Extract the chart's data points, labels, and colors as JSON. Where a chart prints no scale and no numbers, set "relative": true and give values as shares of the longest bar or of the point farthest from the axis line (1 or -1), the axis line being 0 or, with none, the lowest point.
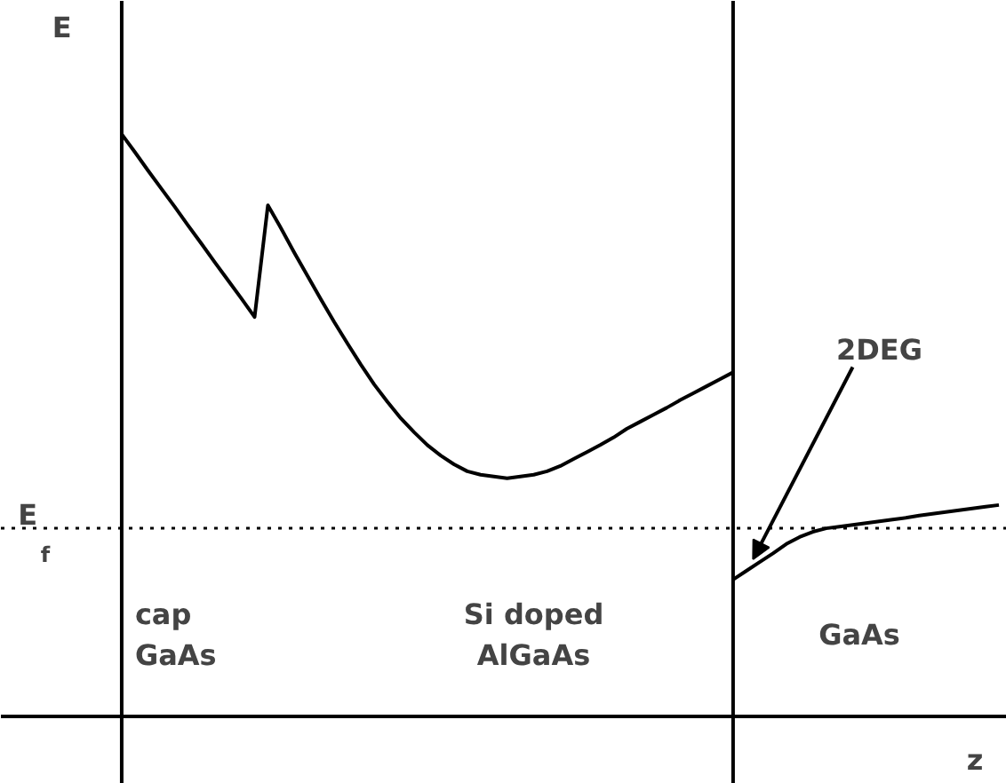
{
  "chart_data": {
    "type": "line",
    "relative": true,
    "xlabel": "z",
    "ylabel": "E",
    "categories": [
      null,
      null,
      null,
      null,
      null,
      null,
      null,
      null,
      null,
      null,
      null,
      null,
      null,
      null,
      null,
      null,
      null,
      null,
      null,
      null,
      null,
      null,
      null,
      null,
      null,
      null,
      null,
      null,
      null,
      null,
      null,
      null,
      null,
      null,
      null,
      null,
      null,
      null,
      null,
      null,
      null,
      null,
      null,
      null,
      null,
      null,
      null,
      null,
      null,
      null,
      null,
      null,
      null,
      null,
      null,
      null,
      null,
      null,
      null,
      null,
      null,
      null,
      null,
      null,
      null,
      null,
      null
    ],
    "series": [
      {
        "color": "#000000",
        "values": [
          1.0,
          0.969,
          0.937,
          0.906,
          0.875,
          0.843,
          0.812,
          0.78,
          0.749,
          0.718,
          0.686,
          0.878,
          0.838,
          0.796,
          0.756,
          0.716,
          0.677,
          0.64,
          0.604,
          0.57,
          0.54,
          0.512,
          0.488,
          0.466,
          0.448,
          0.433,
          0.421,
          0.415,
          0.412,
          0.409,
          0.412,
          0.415,
          0.421,
          0.43,
          0.442,
          0.454,
          0.466,
          0.479,
          0.494,
          0.506,
          0.518,
          0.53,
          0.543,
          0.555,
          0.567,
          0.579,
          0.591,
          null,
          null,
          null,
          null,
          null,
          null,
          null,
          null,
          null,
          null,
          null,
          null,
          null,
          null,
          null,
          null,
          null,
          null,
          null,
          null
        ]
      },
      {
        "color": "#000000",
        "values": [
          null,
          null,
          null,
          null,
          null,
          null,
          null,
          null,
          null,
          null,
          null,
          null,
          null,
          null,
          null,
          null,
          null,
          null,
          null,
          null,
          null,
          null,
          null,
          null,
          null,
          null,
          null,
          null,
          null,
          null,
          null,
          null,
          null,
          null,
          null,
          null,
          null,
          null,
          null,
          null,
          null,
          null,
          null,
          null,
          null,
          null,
          0.235,
          0.25,
          0.265,
          0.28,
          0.296,
          0.308,
          0.317,
          0.323,
          0.326,
          0.329,
          0.332,
          0.335,
          0.338,
          0.341,
          0.345,
          0.348,
          0.351,
          0.354,
          0.357,
          0.36,
          0.363
        ]
      }
    ],
    "ref_lines": [
      {
        "axis": "y",
        "value": 0.323,
        "label": "E$_{f}$",
        "line_style": "dotted",
        "color": "#000000"
      }
    ],
    "annotations": [
      "cap\nGaAs",
      "Si doped\nAlGaAs",
      "GaAs",
      "2DEG"
    ],
    "grid": false,
    "marker": "none",
    "line_style": "solid"
  }
}
